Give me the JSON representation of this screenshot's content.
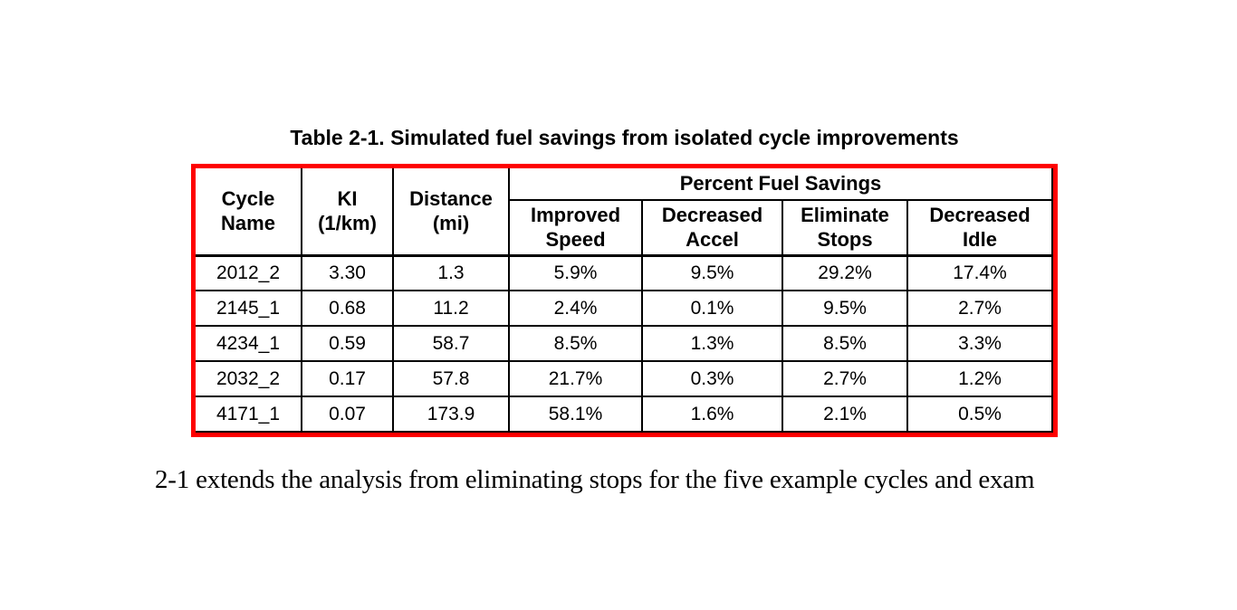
{
  "document": {
    "background": "#ffffff",
    "table": {
      "title": "Table 2-1. Simulated fuel savings from isolated cycle improvements",
      "border_color": "#fe0000",
      "grid_color": "#000000",
      "columns": {
        "cycle": "Cycle\nName",
        "ki": "KI\n(1/km)",
        "distance": "Distance\n(mi)",
        "percent_group": "Percent Fuel Savings",
        "improved_speed": "Improved\nSpeed",
        "decreased_accel": "Decreased\nAccel",
        "eliminate_stops": "Eliminate\nStops",
        "decreased_idle": "Decreased\nIdle"
      },
      "rows": [
        {
          "cycle": "2012_2",
          "ki": "3.30",
          "distance": "1.3",
          "improved_speed": "5.9%",
          "decreased_accel": "9.5%",
          "eliminate_stops": "29.2%",
          "decreased_idle": "17.4%"
        },
        {
          "cycle": "2145_1",
          "ki": "0.68",
          "distance": "11.2",
          "improved_speed": "2.4%",
          "decreased_accel": "0.1%",
          "eliminate_stops": "9.5%",
          "decreased_idle": "2.7%"
        },
        {
          "cycle": "4234_1",
          "ki": "0.59",
          "distance": "58.7",
          "improved_speed": "8.5%",
          "decreased_accel": "1.3%",
          "eliminate_stops": "8.5%",
          "decreased_idle": "3.3%"
        },
        {
          "cycle": "2032_2",
          "ki": "0.17",
          "distance": "57.8",
          "improved_speed": "21.7%",
          "decreased_accel": "0.3%",
          "eliminate_stops": "2.7%",
          "decreased_idle": "1.2%"
        },
        {
          "cycle": "4171_1",
          "ki": "0.07",
          "distance": "173.9",
          "improved_speed": "58.1%",
          "decreased_accel": "1.6%",
          "eliminate_stops": "2.1%",
          "decreased_idle": "0.5%"
        }
      ]
    },
    "body_text": "2-1 extends the analysis from eliminating stops for the five example cycles and exam"
  }
}
